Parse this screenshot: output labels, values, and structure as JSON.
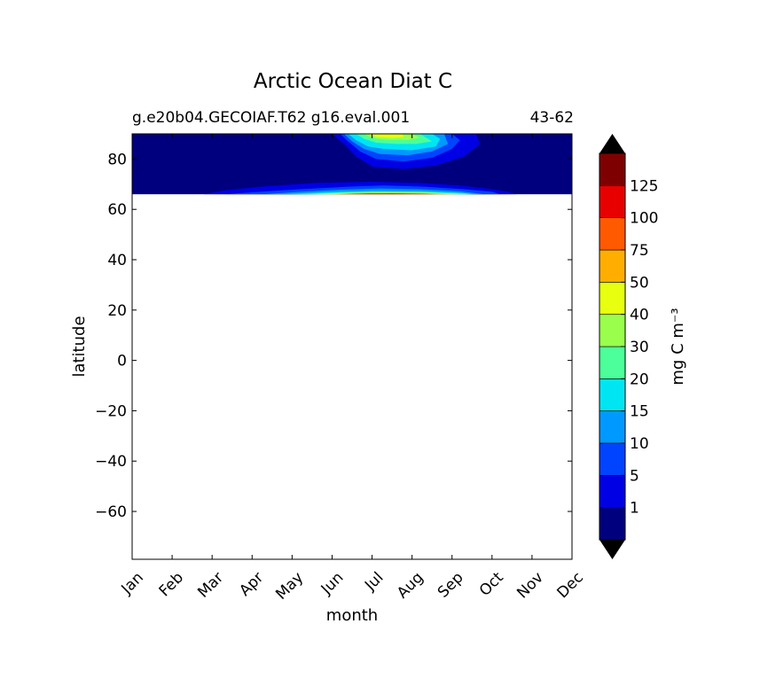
{
  "chart_data": {
    "type": "heatmap",
    "title": "Arctic Ocean Diat C",
    "subtitle_left": "g.e20b04.GECOIAF.T62 g16.eval.001",
    "subtitle_right": "43-62",
    "xlabel": "month",
    "ylabel": "latitude",
    "x_categories": [
      "Jan",
      "Feb",
      "Mar",
      "Apr",
      "May",
      "Jun",
      "Jul",
      "Aug",
      "Sep",
      "Oct",
      "Nov",
      "Dec"
    ],
    "y_ticks": [
      "80",
      "60",
      "40",
      "20",
      "0",
      "−20",
      "−40",
      "−60"
    ],
    "ylim": [
      -79,
      90
    ],
    "data_lat_range": [
      66,
      90
    ],
    "colorbar": {
      "label": "mg C m⁻³",
      "levels": [
        1,
        5,
        10,
        15,
        20,
        30,
        40,
        50,
        75,
        100,
        125
      ],
      "tick_labels": [
        "1",
        "5",
        "10",
        "15",
        "20",
        "30",
        "40",
        "50",
        "75",
        "100",
        "125"
      ],
      "colors": [
        "#00007f",
        "#0000e5",
        "#0044ff",
        "#0099ff",
        "#00e5f2",
        "#4cff9a",
        "#9aff4c",
        "#e8ff0f",
        "#ffae00",
        "#ff5a00",
        "#e80000",
        "#7f0000"
      ],
      "extend": "both"
    }
  }
}
